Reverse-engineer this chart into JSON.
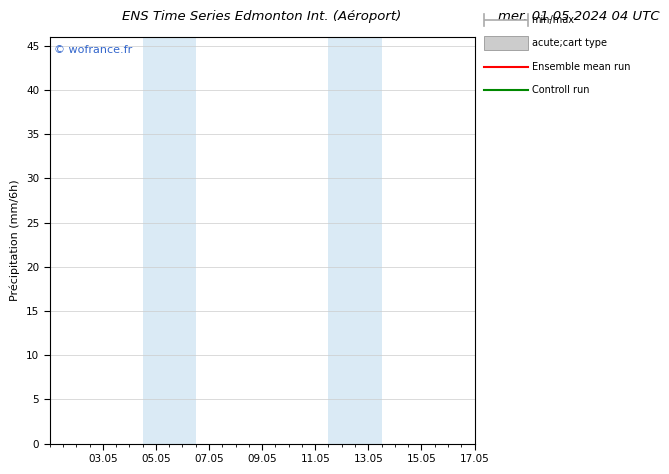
{
  "title_left": "ENS Time Series Edmonton Int. (Aéroport)",
  "title_right": "mer. 01.05.2024 04 UTC",
  "ylabel": "Précipitation (mm/6h)",
  "x_tick_labels": [
    "03.05",
    "05.05",
    "07.05",
    "09.05",
    "11.05",
    "13.05",
    "15.05",
    "17.05"
  ],
  "x_tick_positions": [
    2,
    4,
    6,
    8,
    10,
    12,
    14,
    16
  ],
  "xlim": [
    0,
    16
  ],
  "ylim": [
    0,
    46
  ],
  "y_tick_positions": [
    0,
    5,
    10,
    15,
    20,
    25,
    30,
    35,
    40,
    45
  ],
  "shaded_regions": [
    {
      "xmin": 3.5,
      "xmax": 5.5,
      "color": "#daeaf5"
    },
    {
      "xmin": 10.5,
      "xmax": 12.5,
      "color": "#daeaf5"
    }
  ],
  "legend_items": [
    {
      "label": "min/max",
      "color": "#aaaaaa",
      "style": "minmax"
    },
    {
      "label": "acute;cart type",
      "color": "#cccccc",
      "style": "box"
    },
    {
      "label": "Ensemble mean run",
      "color": "#ff0000",
      "style": "line"
    },
    {
      "label": "Controll run",
      "color": "#008800",
      "style": "line"
    }
  ],
  "watermark": "© wofrance.fr",
  "watermark_color": "#3366cc",
  "background_color": "#ffffff",
  "plot_bg_color": "#ffffff",
  "grid_color": "#cccccc",
  "title_fontsize": 9.5,
  "tick_fontsize": 7.5,
  "ylabel_fontsize": 8,
  "legend_fontsize": 7
}
